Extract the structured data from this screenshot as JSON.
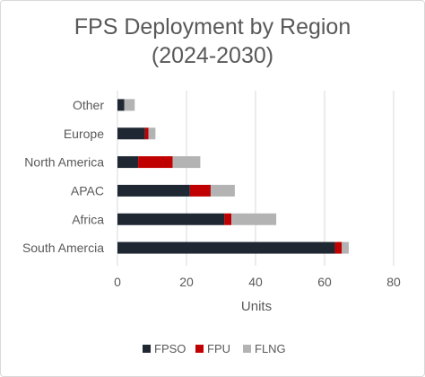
{
  "chart_data": {
    "type": "bar",
    "orientation": "horizontal",
    "stacked": true,
    "title": "FPS Deployment by Region",
    "subtitle": "(2024-2030)",
    "xlabel": "Units",
    "ylabel": "",
    "categories": [
      "South Amercia",
      "Africa",
      "APAC",
      "North America",
      "Europe",
      "Other"
    ],
    "series": [
      {
        "name": "FPSO",
        "color": "#1f2733",
        "values": [
          63,
          31,
          21,
          6,
          8,
          2
        ]
      },
      {
        "name": "FPU",
        "color": "#c00000",
        "values": [
          2,
          2,
          6,
          10,
          1,
          0
        ]
      },
      {
        "name": "FLNG",
        "color": "#b3b3b3",
        "values": [
          2,
          13,
          7,
          8,
          2,
          3
        ]
      }
    ],
    "xlim": [
      0,
      80
    ],
    "xticks": [
      0,
      20,
      40,
      60,
      80
    ],
    "grid": "vertical",
    "legend": "bottom"
  }
}
